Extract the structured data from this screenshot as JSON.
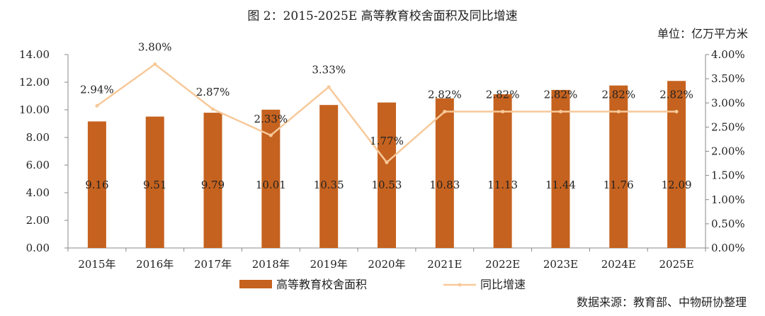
{
  "title": "图 2：2015-2025E 高等教育校舍面积及同比增速",
  "unit_label": "单位：亿万平方米",
  "source": "数据来源：教育部、中物研协整理",
  "colors": {
    "bar": "#C5621F",
    "line": "#F7C99A",
    "axis": "#888888"
  },
  "chart_data": {
    "type": "bar",
    "categories": [
      "2015年",
      "2016年",
      "2017年",
      "2018年",
      "2019年",
      "2020年",
      "2021E",
      "2022E",
      "2023E",
      "2024E",
      "2025E"
    ],
    "series": [
      {
        "name": "高等教育校舍面积",
        "type": "bar",
        "axis": "left",
        "values": [
          9.16,
          9.51,
          9.79,
          10.01,
          10.35,
          10.53,
          10.83,
          11.13,
          11.44,
          11.76,
          12.09
        ],
        "labels": [
          "9.16",
          "9.51",
          "9.79",
          "10.01",
          "10.35",
          "10.53",
          "10.83",
          "11.13",
          "11.44",
          "11.76",
          "12.09"
        ]
      },
      {
        "name": "同比增速",
        "type": "line",
        "axis": "right",
        "values": [
          2.94,
          3.8,
          2.87,
          2.33,
          3.33,
          1.77,
          2.82,
          2.82,
          2.82,
          2.82,
          2.82
        ],
        "labels": [
          "2.94%",
          "3.80%",
          "2.87%",
          "2.33%",
          "3.33%",
          "1.77%",
          "2.82%",
          "2.82%",
          "2.82%",
          "2.82%",
          "2.82%"
        ]
      }
    ],
    "y_left": {
      "lim": [
        0,
        14
      ],
      "ticks": [
        "0.00",
        "2.00",
        "4.00",
        "6.00",
        "8.00",
        "10.00",
        "12.00",
        "14.00"
      ]
    },
    "y_right": {
      "lim": [
        0,
        4
      ],
      "ticks": [
        "0.00%",
        "0.50%",
        "1.00%",
        "1.50%",
        "2.00%",
        "2.50%",
        "3.00%",
        "3.50%",
        "4.00%"
      ]
    },
    "legend": {
      "placement": "bottom",
      "items": [
        "高等教育校舍面积",
        "同比增速"
      ]
    },
    "grid": false
  }
}
